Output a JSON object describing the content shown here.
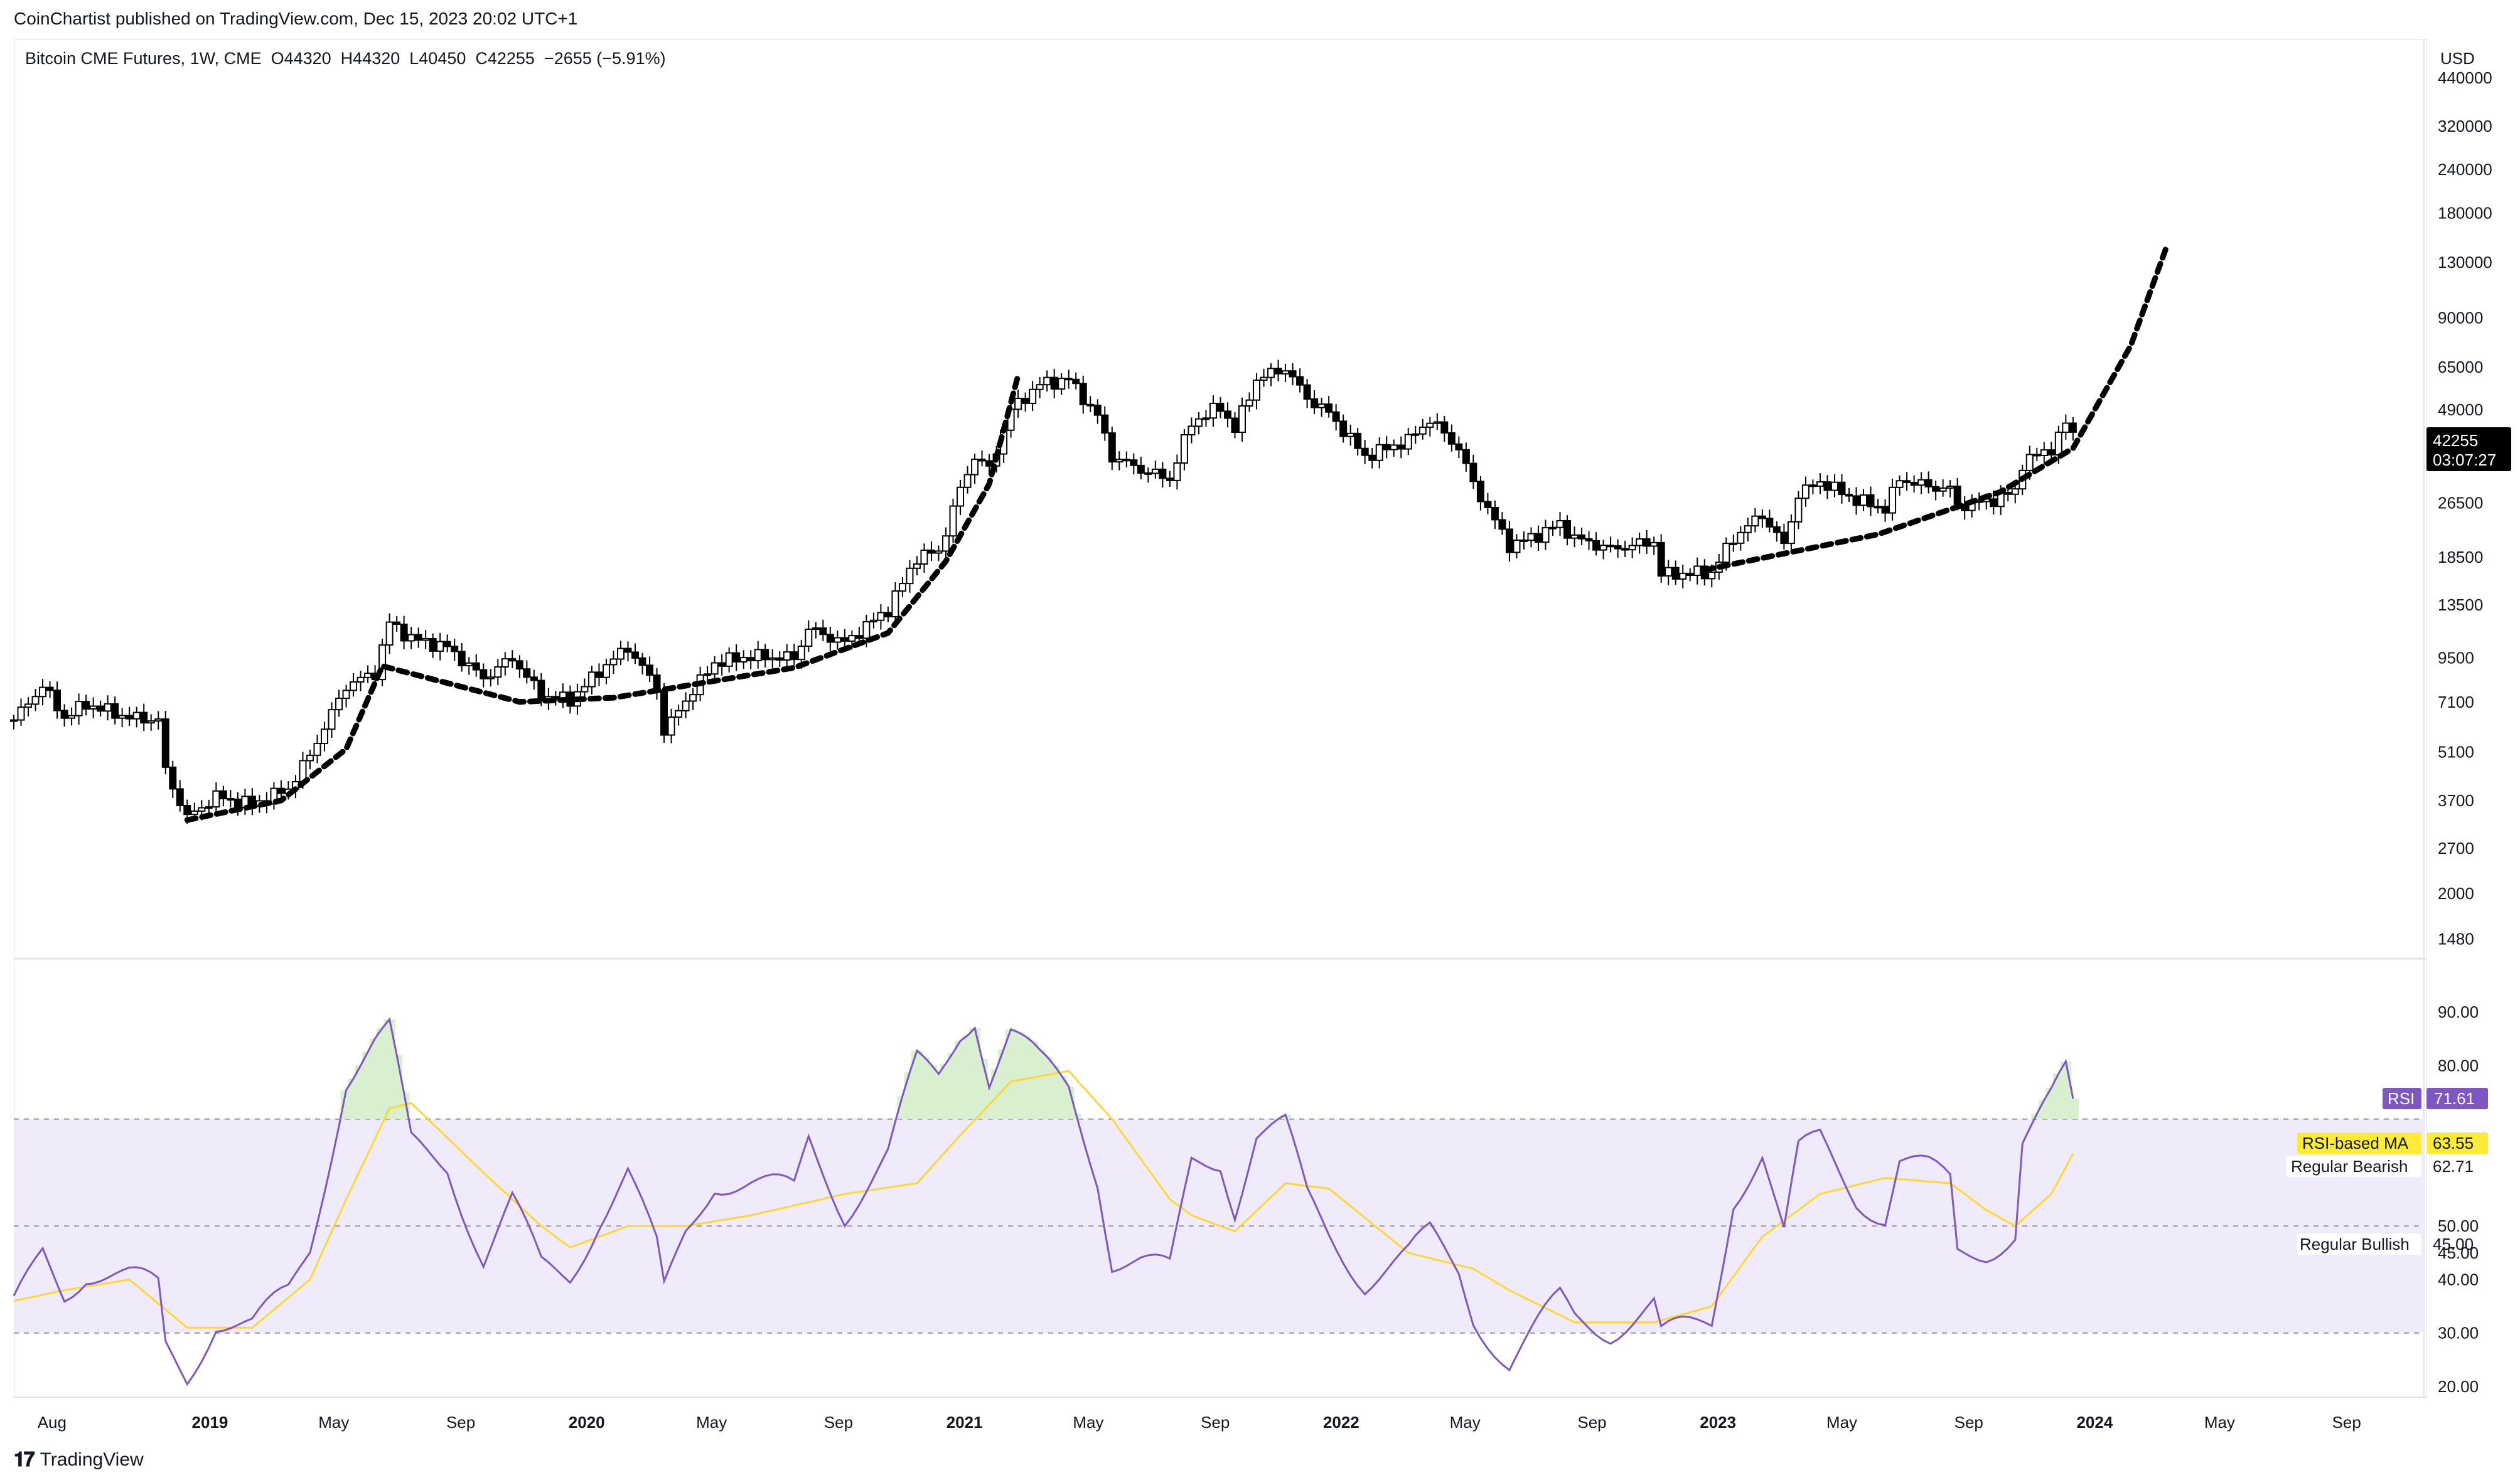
{
  "publisher": "CoinChartist published on TradingView.com, Dec 15, 2023 20:02 UTC+1",
  "legend": "Bitcoin CME Futures, 1W, CME  O44320  H44320  L40450  C42255  −2655 (−5.91%)",
  "currency": "USD",
  "footer": {
    "brand": "TradingView"
  },
  "price_tag": {
    "value": "42255",
    "countdown": "03:07:27"
  },
  "rsi_tags": {
    "rsi_label": "RSI",
    "rsi_value": "71.61",
    "ma_label": "RSI-based MA",
    "ma_value": "63.55",
    "bearish_label": "Regular Bearish",
    "bearish_value": "62.71",
    "bullish_label": "Regular Bullish",
    "bullish_value": "45.00"
  },
  "colors": {
    "up": "#ffffff",
    "down": "#000000",
    "rsi_line": "#7e57c2",
    "rsi_ma": "#fdd835",
    "rsi_band": "#f0ebfa",
    "overbought_fill": "#d8efd0"
  },
  "chart_data": [
    {
      "type": "candlestick",
      "title": "Bitcoin CME Futures, 1W, CME",
      "yscale": "log",
      "ylim": [
        1300,
        560000
      ],
      "yticks": [
        440000,
        320000,
        240000,
        180000,
        130000,
        90000,
        65000,
        49000,
        35500,
        26500,
        18500,
        13500,
        9500,
        7100,
        5100,
        3700,
        2700,
        2000,
        1480
      ],
      "xlim": [
        "2018-06-25",
        "2024-11-15"
      ],
      "xticks": [
        "Aug",
        "2019",
        "May",
        "Sep",
        "2020",
        "May",
        "Sep",
        "2021",
        "May",
        "Sep",
        "2022",
        "May",
        "Sep",
        "2023",
        "May",
        "Sep",
        "2024",
        "May",
        "Sep"
      ],
      "xtick_dates": [
        "2018-08-01",
        "2019-01-01",
        "2019-05-01",
        "2019-09-01",
        "2020-01-01",
        "2020-05-01",
        "2020-09-01",
        "2021-01-01",
        "2021-05-01",
        "2021-09-01",
        "2022-01-01",
        "2022-05-01",
        "2022-09-01",
        "2023-01-01",
        "2023-05-01",
        "2023-09-01",
        "2024-01-01",
        "2024-05-01",
        "2024-09-01"
      ],
      "waypoints": [
        [
          "2018-06-25",
          6300
        ],
        [
          "2018-07-23",
          7900
        ],
        [
          "2018-08-13",
          6400
        ],
        [
          "2018-09-03",
          7000
        ],
        [
          "2018-10-15",
          6400
        ],
        [
          "2018-11-12",
          6300
        ],
        [
          "2018-11-19",
          4500
        ],
        [
          "2018-12-10",
          3300
        ],
        [
          "2019-01-07",
          3800
        ],
        [
          "2019-02-11",
          3600
        ],
        [
          "2019-03-18",
          4000
        ],
        [
          "2019-04-08",
          5000
        ],
        [
          "2019-05-13",
          7900
        ],
        [
          "2019-06-10",
          8600
        ],
        [
          "2019-06-24",
          12000
        ],
        [
          "2019-07-15",
          10800
        ],
        [
          "2019-08-19",
          10200
        ],
        [
          "2019-09-23",
          8300
        ],
        [
          "2019-10-21",
          9500
        ],
        [
          "2019-11-18",
          7400
        ],
        [
          "2019-12-16",
          7200
        ],
        [
          "2020-01-13",
          8700
        ],
        [
          "2020-02-10",
          10200
        ],
        [
          "2020-03-09",
          7800
        ],
        [
          "2020-03-16",
          5800
        ],
        [
          "2020-04-06",
          7200
        ],
        [
          "2020-05-04",
          9200
        ],
        [
          "2020-06-08",
          9600
        ],
        [
          "2020-07-20",
          9500
        ],
        [
          "2020-08-03",
          11500
        ],
        [
          "2020-09-07",
          10500
        ],
        [
          "2020-10-19",
          13100
        ],
        [
          "2020-11-16",
          18500
        ],
        [
          "2020-12-07",
          19200
        ],
        [
          "2020-12-28",
          29000
        ],
        [
          "2021-01-11",
          36000
        ],
        [
          "2021-01-25",
          33000
        ],
        [
          "2021-02-15",
          49000
        ],
        [
          "2021-03-15",
          58000
        ],
        [
          "2021-04-12",
          60000
        ],
        [
          "2021-05-10",
          47000
        ],
        [
          "2021-05-24",
          36000
        ],
        [
          "2021-06-21",
          33000
        ],
        [
          "2021-07-19",
          31000
        ],
        [
          "2021-08-09",
          45000
        ],
        [
          "2021-09-06",
          50000
        ],
        [
          "2021-09-20",
          43000
        ],
        [
          "2021-10-11",
          60000
        ],
        [
          "2021-11-08",
          64500
        ],
        [
          "2021-11-29",
          53000
        ],
        [
          "2021-12-20",
          48000
        ],
        [
          "2022-01-24",
          36000
        ],
        [
          "2022-03-07",
          40000
        ],
        [
          "2022-03-28",
          46000
        ],
        [
          "2022-04-25",
          38000
        ],
        [
          "2022-05-09",
          30000
        ],
        [
          "2022-06-13",
          20000
        ],
        [
          "2022-07-04",
          21000
        ],
        [
          "2022-08-01",
          23000
        ],
        [
          "2022-08-15",
          21000
        ],
        [
          "2022-09-19",
          19500
        ],
        [
          "2022-10-31",
          20500
        ],
        [
          "2022-11-07",
          16500
        ],
        [
          "2022-12-26",
          16700
        ],
        [
          "2023-01-16",
          21000
        ],
        [
          "2023-02-13",
          24500
        ],
        [
          "2023-03-06",
          20000
        ],
        [
          "2023-03-20",
          28000
        ],
        [
          "2023-04-10",
          30500
        ],
        [
          "2023-05-15",
          27000
        ],
        [
          "2023-06-12",
          25500
        ],
        [
          "2023-06-26",
          31000
        ],
        [
          "2023-07-24",
          29500
        ],
        [
          "2023-08-14",
          29000
        ],
        [
          "2023-08-21",
          26000
        ],
        [
          "2023-09-18",
          26700
        ],
        [
          "2023-10-16",
          28500
        ],
        [
          "2023-10-23",
          34500
        ],
        [
          "2023-11-20",
          38000
        ],
        [
          "2023-12-04",
          44500
        ],
        [
          "2023-12-11",
          42255
        ]
      ],
      "curve": {
        "style": "dashed",
        "points": [
          [
            "2018-12-10",
            3250
          ],
          [
            "2019-03-11",
            3700
          ],
          [
            "2019-05-13",
            5200
          ],
          [
            "2019-06-17",
            9000
          ],
          [
            "2019-10-28",
            7100
          ],
          [
            "2020-01-27",
            7300
          ],
          [
            "2020-07-20",
            8900
          ],
          [
            "2020-10-19",
            11200
          ],
          [
            "2020-12-14",
            18000
          ],
          [
            "2021-01-25",
            30000
          ],
          [
            "2021-02-22",
            61500
          ],
          [
            "2022-12-19",
            17000
          ],
          [
            "2023-06-05",
            21500
          ],
          [
            "2023-10-02",
            28500
          ],
          [
            "2023-12-11",
            38000
          ],
          [
            "2024-02-05",
            75000
          ],
          [
            "2024-03-11",
            145000
          ]
        ]
      }
    },
    {
      "type": "line",
      "title": "RSI",
      "ylim": [
        18,
        100
      ],
      "yticks": [
        90,
        80,
        50,
        45,
        40,
        30,
        20
      ],
      "yticklabels": [
        "90.00",
        "80.00",
        "50.00",
        "45.00",
        "40.00",
        "30.00",
        "20.00"
      ],
      "bands": {
        "upper": 70,
        "middle": 50,
        "lower": 30
      },
      "series": [
        {
          "name": "RSI",
          "waypoints": [
            [
              "2018-06-25",
              34
            ],
            [
              "2018-07-23",
              45
            ],
            [
              "2018-08-13",
              38
            ],
            [
              "2018-09-03",
              42
            ],
            [
              "2018-10-15",
              40
            ],
            [
              "2018-11-12",
              38
            ],
            [
              "2018-11-19",
              27
            ],
            [
              "2018-12-10",
              22
            ],
            [
              "2019-01-07",
              33
            ],
            [
              "2019-02-11",
              31
            ],
            [
              "2019-03-18",
              37
            ],
            [
              "2019-04-08",
              46
            ],
            [
              "2019-05-13",
              78
            ],
            [
              "2019-06-10",
              84
            ],
            [
              "2019-06-24",
              86
            ],
            [
              "2019-07-15",
              65
            ],
            [
              "2019-08-19",
              62
            ],
            [
              "2019-09-23",
              44
            ],
            [
              "2019-10-21",
              54
            ],
            [
              "2019-11-18",
              42
            ],
            [
              "2019-12-16",
              41
            ],
            [
              "2020-01-13",
              52
            ],
            [
              "2020-02-10",
              60
            ],
            [
              "2020-03-09",
              45
            ],
            [
              "2020-03-16",
              37
            ],
            [
              "2020-04-06",
              49
            ],
            [
              "2020-05-04",
              59
            ],
            [
              "2020-06-08",
              58
            ],
            [
              "2020-07-20",
              56
            ],
            [
              "2020-08-03",
              66
            ],
            [
              "2020-09-07",
              53
            ],
            [
              "2020-10-19",
              63
            ],
            [
              "2020-11-16",
              80
            ],
            [
              "2020-12-07",
              78
            ],
            [
              "2020-12-28",
              87
            ],
            [
              "2021-01-11",
              90
            ],
            [
              "2021-01-25",
              78
            ],
            [
              "2021-02-15",
              86
            ],
            [
              "2021-03-15",
              80
            ],
            [
              "2021-04-12",
              76
            ],
            [
              "2021-05-10",
              60
            ],
            [
              "2021-05-24",
              44
            ],
            [
              "2021-06-21",
              43
            ],
            [
              "2021-07-19",
              41
            ],
            [
              "2021-08-09",
              62
            ],
            [
              "2021-09-06",
              63
            ],
            [
              "2021-09-20",
              54
            ],
            [
              "2021-10-11",
              67
            ],
            [
              "2021-11-08",
              68
            ],
            [
              "2021-11-29",
              55
            ],
            [
              "2021-12-20",
              49
            ],
            [
              "2022-01-24",
              40
            ],
            [
              "2022-03-07",
              44
            ],
            [
              "2022-03-28",
              48
            ],
            [
              "2022-04-25",
              42
            ],
            [
              "2022-05-09",
              34
            ],
            [
              "2022-06-13",
              24
            ],
            [
              "2022-07-04",
              29
            ],
            [
              "2022-08-01",
              36
            ],
            [
              "2022-08-15",
              33
            ],
            [
              "2022-09-19",
              31
            ],
            [
              "2022-10-31",
              35
            ],
            [
              "2022-11-07",
              29
            ],
            [
              "2022-12-26",
              32
            ],
            [
              "2023-01-16",
              56
            ],
            [
              "2023-02-13",
              64
            ],
            [
              "2023-03-06",
              48
            ],
            [
              "2023-03-20",
              63
            ],
            [
              "2023-04-10",
              66
            ],
            [
              "2023-05-15",
              56
            ],
            [
              "2023-06-12",
              52
            ],
            [
              "2023-06-26",
              62
            ],
            [
              "2023-07-24",
              60
            ],
            [
              "2023-08-14",
              58
            ],
            [
              "2023-08-21",
              45
            ],
            [
              "2023-09-18",
              46
            ],
            [
              "2023-10-16",
              49
            ],
            [
              "2023-10-23",
              66
            ],
            [
              "2023-11-20",
              73
            ],
            [
              "2023-12-04",
              78
            ],
            [
              "2023-12-11",
              71.61
            ]
          ]
        },
        {
          "name": "RSI-based MA",
          "waypoints": [
            [
              "2018-06-25",
              36
            ],
            [
              "2018-08-13",
              38
            ],
            [
              "2018-10-15",
              40
            ],
            [
              "2018-12-10",
              31
            ],
            [
              "2019-02-11",
              31
            ],
            [
              "2019-04-08",
              40
            ],
            [
              "2019-05-13",
              55
            ],
            [
              "2019-06-24",
              72
            ],
            [
              "2019-07-15",
              73
            ],
            [
              "2019-09-23",
              60
            ],
            [
              "2019-11-18",
              50
            ],
            [
              "2019-12-16",
              46
            ],
            [
              "2020-02-10",
              50
            ],
            [
              "2020-04-06",
              50
            ],
            [
              "2020-06-08",
              52
            ],
            [
              "2020-09-07",
              56
            ],
            [
              "2020-11-16",
              58
            ],
            [
              "2020-12-28",
              67
            ],
            [
              "2021-02-15",
              77
            ],
            [
              "2021-04-12",
              79
            ],
            [
              "2021-05-24",
              70
            ],
            [
              "2021-07-19",
              55
            ],
            [
              "2021-08-09",
              52
            ],
            [
              "2021-09-20",
              49
            ],
            [
              "2021-11-08",
              58
            ],
            [
              "2021-12-20",
              57
            ],
            [
              "2022-03-07",
              45
            ],
            [
              "2022-05-09",
              42
            ],
            [
              "2022-06-13",
              38
            ],
            [
              "2022-08-15",
              32
            ],
            [
              "2022-10-31",
              32
            ],
            [
              "2022-12-26",
              35
            ],
            [
              "2023-02-13",
              48
            ],
            [
              "2023-04-10",
              56
            ],
            [
              "2023-06-12",
              59
            ],
            [
              "2023-08-14",
              58
            ],
            [
              "2023-09-18",
              53
            ],
            [
              "2023-10-16",
              50
            ],
            [
              "2023-11-20",
              56
            ],
            [
              "2023-12-11",
              63.55
            ]
          ]
        }
      ]
    }
  ]
}
